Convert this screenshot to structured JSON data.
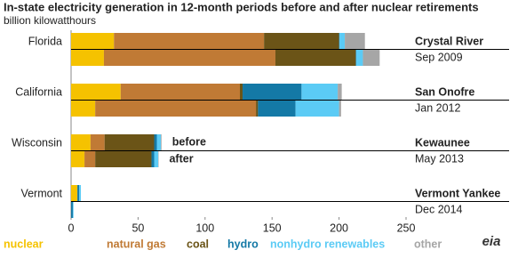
{
  "chart_data": {
    "type": "stacked-hbar-pairs",
    "title": "In-state electricity generation in 12-month periods before and after nuclear retirements",
    "subtitle": "billion kilowatthours",
    "categories": [
      "Florida",
      "California",
      "Wisconsin",
      "Vermont"
    ],
    "plants": [
      {
        "name": "Crystal River",
        "date": "Sep 2009"
      },
      {
        "name": "San Onofre",
        "date": "Jan 2012"
      },
      {
        "name": "Kewaunee",
        "date": "May 2013"
      },
      {
        "name": "Vermont Yankee",
        "date": "Dec 2014"
      }
    ],
    "periods": [
      "before",
      "after"
    ],
    "series": [
      {
        "name": "nuclear",
        "color": "#f5c200",
        "values": [
          [
            32,
            24.5
          ],
          [
            37,
            18
          ],
          [
            14.5,
            10
          ],
          [
            4.7,
            0
          ]
        ]
      },
      {
        "name": "natural gas",
        "color": "#c07a35",
        "values": [
          [
            112,
            128
          ],
          [
            89,
            120
          ],
          [
            10.5,
            8
          ],
          [
            0,
            0
          ]
        ]
      },
      {
        "name": "coal",
        "color": "#6b5417",
        "values": [
          [
            56,
            60
          ],
          [
            2,
            1.5
          ],
          [
            37,
            42
          ],
          [
            0,
            0
          ]
        ]
      },
      {
        "name": "hydro",
        "color": "#1479a6",
        "values": [
          [
            0.3,
            0.3
          ],
          [
            44,
            28
          ],
          [
            2,
            2
          ],
          [
            1.3,
            1.3
          ]
        ]
      },
      {
        "name": "nonhydro renewables",
        "color": "#5bcbf5",
        "values": [
          [
            4,
            5
          ],
          [
            27,
            32.5
          ],
          [
            3,
            3
          ],
          [
            1.3,
            0.5
          ]
        ]
      },
      {
        "name": "other",
        "color": "#a6a6a6",
        "values": [
          [
            15,
            12.5
          ],
          [
            3,
            1.5
          ],
          [
            0.5,
            0.3
          ],
          [
            0,
            0
          ]
        ]
      }
    ],
    "xlim": [
      0,
      250
    ],
    "xticks": [
      0,
      50,
      100,
      150,
      200,
      250
    ],
    "logo": "eia"
  }
}
